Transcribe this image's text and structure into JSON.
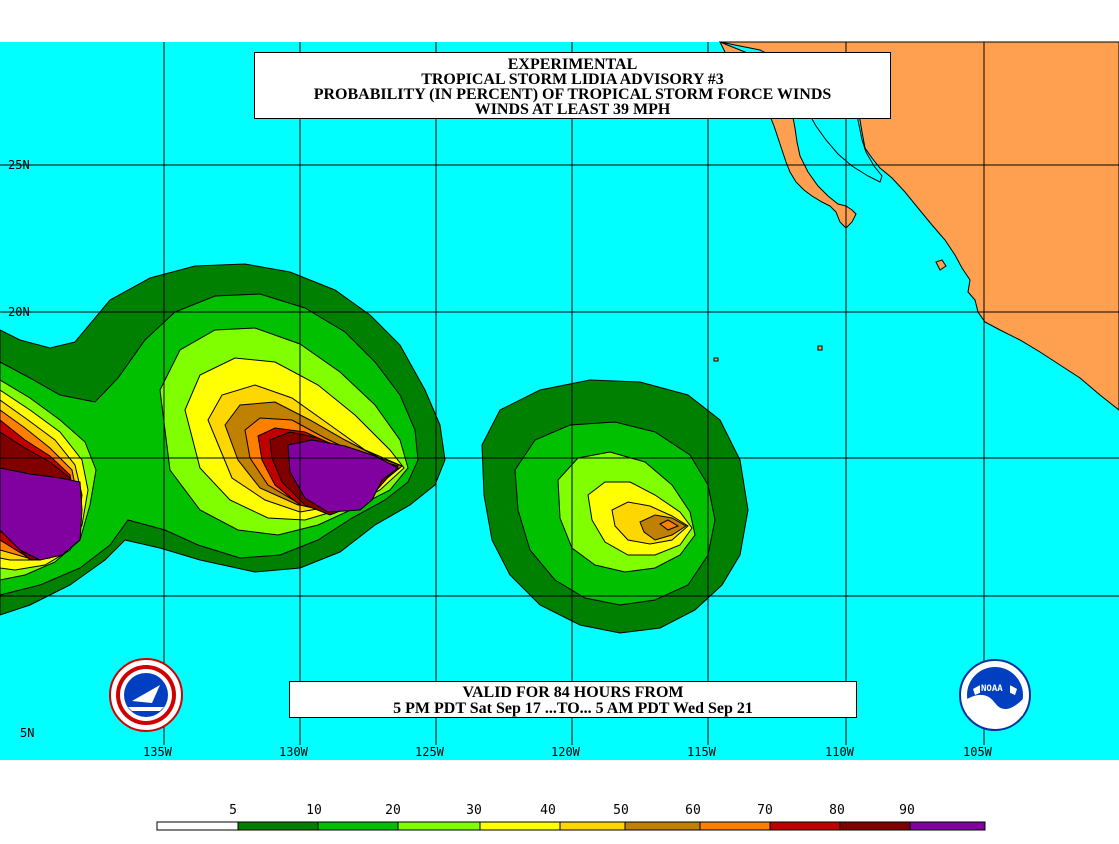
{
  "title": {
    "line1": "EXPERIMENTAL",
    "line2": "TROPICAL STORM LIDIA ADVISORY #3",
    "line3": "PROBABILITY (IN PERCENT) OF TROPICAL STORM FORCE WINDS",
    "line4": "WINDS AT LEAST 39 MPH"
  },
  "valid": {
    "line1": "VALID FOR 84 HOURS FROM",
    "line2": "5 PM PDT Sat Sep 17 ...TO... 5 AM PDT Wed Sep 21"
  },
  "lat_labels": [
    "25N",
    "20N",
    "5N"
  ],
  "lon_labels": [
    "135W",
    "130W",
    "125W",
    "120W",
    "115W",
    "110W",
    "105W"
  ],
  "legend": {
    "ticks": [
      "5",
      "10",
      "20",
      "30",
      "40",
      "50",
      "60",
      "70",
      "80",
      "90"
    ],
    "colors": [
      "#ffffff",
      "#008000",
      "#00c000",
      "#80ff00",
      "#ffff00",
      "#ffd700",
      "#c08000",
      "#ff8000",
      "#c00000",
      "#800000",
      "#8000a0"
    ]
  },
  "colors": {
    "ocean": "#00ffff",
    "land": "#ffa050",
    "grid": "#000000"
  },
  "logos": {
    "left": "NWS seal",
    "right": "NOAA logo"
  }
}
